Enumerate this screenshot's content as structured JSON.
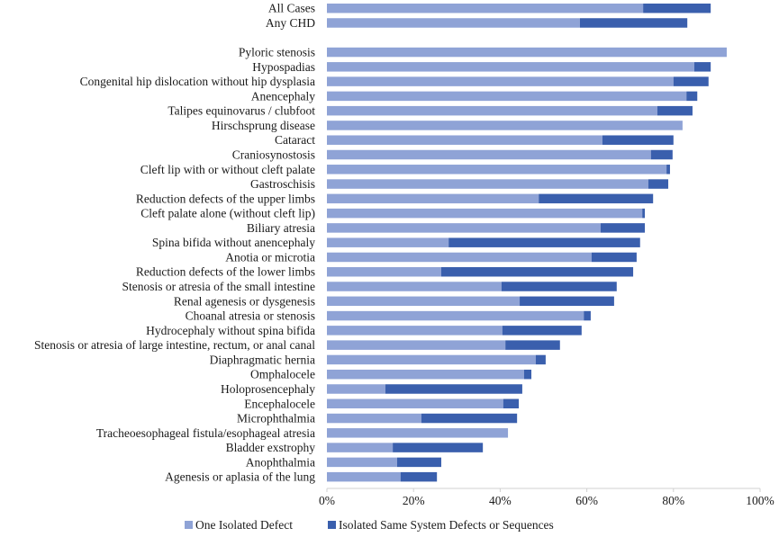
{
  "chart_data": {
    "type": "bar",
    "orientation": "horizontal",
    "stacked": true,
    "title": "",
    "xlabel": "",
    "ylabel": "",
    "xlim": [
      0,
      100
    ],
    "x_ticks": [
      "0%",
      "20%",
      "40%",
      "60%",
      "80%",
      "100%"
    ],
    "x_tick_values": [
      0,
      20,
      40,
      60,
      80,
      100
    ],
    "grid": false,
    "legend_position": "bottom",
    "categories": [
      "All Cases",
      "Any CHD",
      "",
      "Pyloric stenosis",
      "Hypospadias",
      "Congenital hip dislocation without hip dysplasia",
      "Anencephaly",
      "Talipes equinovarus / clubfoot",
      "Hirschsprung disease",
      "Cataract",
      "Craniosynostosis",
      "Cleft lip with or without cleft palate",
      "Gastroschisis",
      "Reduction defects of the upper limbs",
      "Cleft palate alone (without cleft lip)",
      "Biliary atresia",
      "Spina bifida without anencephaly",
      "Anotia or microtia",
      "Reduction defects of the lower limbs",
      "Stenosis or atresia of the small intestine",
      "Renal agenesis or dysgenesis",
      "Choanal atresia or stenosis",
      "Hydrocephaly without spina bifida",
      "Stenosis or atresia of large intestine, rectum, or anal canal",
      "Diaphragmatic hernia",
      "Omphalocele",
      "Holoprosencephaly",
      "Encephalocele",
      "Microphthalmia",
      "Tracheoesophageal fistula/esophageal atresia",
      "Bladder exstrophy",
      "Anophthalmia",
      "Agenesis or aplasia of the lung"
    ],
    "series": [
      {
        "name": "One Isolated Defect",
        "color": "#8FA3D6",
        "values": [
          73.0,
          58.4,
          null,
          92.3,
          84.8,
          80.0,
          83.0,
          76.3,
          82.1,
          63.6,
          74.8,
          78.4,
          74.2,
          48.9,
          72.8,
          63.2,
          28.1,
          61.1,
          26.4,
          40.3,
          44.5,
          59.3,
          40.5,
          41.2,
          48.2,
          45.5,
          13.5,
          40.7,
          21.8,
          41.8,
          15.2,
          16.2,
          17.0
        ]
      },
      {
        "name": "Isolated Same System Defects or Sequences",
        "color": "#3A5FAD",
        "values": [
          15.6,
          24.8,
          null,
          0.0,
          3.8,
          8.1,
          2.5,
          8.1,
          0.0,
          16.4,
          5.0,
          0.8,
          4.6,
          26.4,
          0.6,
          10.2,
          44.2,
          10.4,
          44.3,
          26.6,
          21.8,
          1.6,
          18.3,
          12.6,
          2.3,
          1.7,
          31.6,
          3.6,
          22.1,
          0.0,
          20.8,
          10.2,
          8.4
        ]
      }
    ]
  }
}
